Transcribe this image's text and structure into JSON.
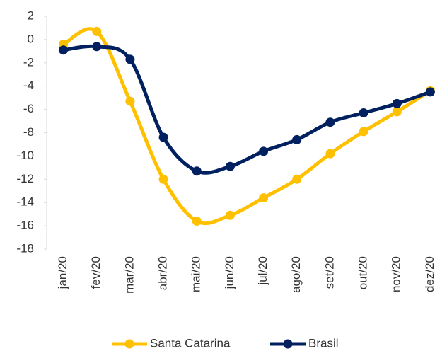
{
  "chart_data": {
    "type": "line",
    "categories": [
      "jan/20",
      "fev/20",
      "mar/20",
      "abr/20",
      "mai/20",
      "jun/20",
      "jul/20",
      "ago/20",
      "set/20",
      "out/20",
      "nov/20",
      "dez/20"
    ],
    "series": [
      {
        "name": "Santa Catarina",
        "color": "#FFC000",
        "values": [
          -0.4,
          0.7,
          -5.3,
          -12.0,
          -15.6,
          -15.1,
          -13.6,
          -12.0,
          -9.8,
          -7.9,
          -6.2,
          -4.4
        ]
      },
      {
        "name": "Brasil",
        "color": "#002060",
        "values": [
          -0.9,
          -0.6,
          -1.7,
          -8.4,
          -11.3,
          -10.9,
          -9.6,
          -8.6,
          -7.1,
          -6.3,
          -5.5,
          -4.5
        ]
      }
    ],
    "ylim": [
      -18,
      2
    ],
    "yticks": [
      -18,
      -16,
      -14,
      -12,
      -10,
      -8,
      -6,
      -4,
      -2,
      0,
      2
    ],
    "legend": "bottom"
  }
}
